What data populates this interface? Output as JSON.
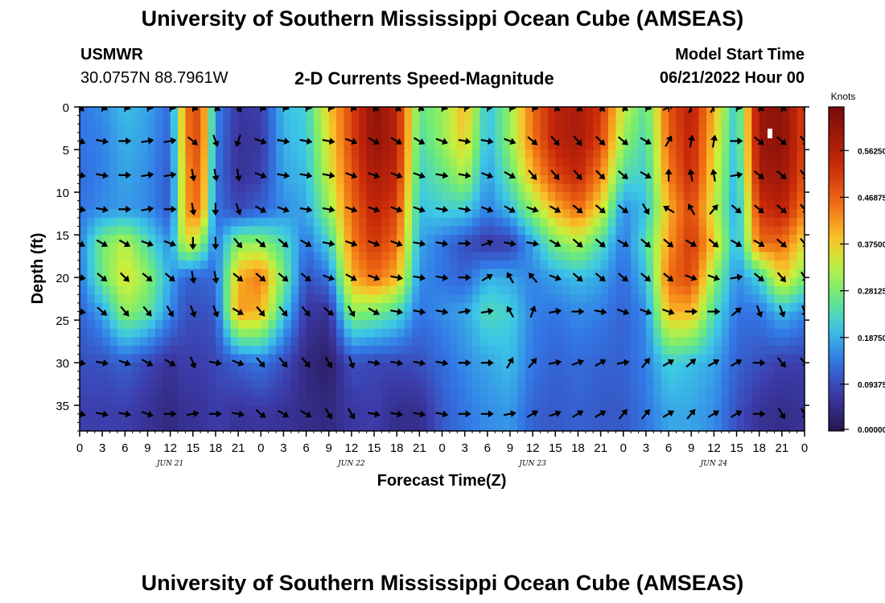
{
  "title": "University of Southern Mississippi Ocean Cube (AMSEAS)",
  "station": {
    "name": "USMWR",
    "coords": "30.0757N  88.7961W"
  },
  "model": {
    "label": "Model Start Time",
    "value": "06/21/2022 Hour 00"
  },
  "chart_data": {
    "type": "heatmap",
    "title": "2-D Currents Speed-Magnitude",
    "xlabel": "Forecast Time(Z)",
    "ylabel": "Depth (ft)",
    "x_hours": [
      0,
      96
    ],
    "y_depth_ft": [
      0,
      38
    ],
    "x_ticks": [
      "0",
      "3",
      "6",
      "9",
      "12",
      "15",
      "18",
      "21",
      "0",
      "3",
      "6",
      "9",
      "12",
      "15",
      "18",
      "21",
      "0",
      "3",
      "6",
      "9",
      "12",
      "15",
      "18",
      "21",
      "0",
      "3",
      "6",
      "9",
      "12",
      "15",
      "18",
      "21",
      "0"
    ],
    "date_labels": [
      {
        "label": "JUN 21",
        "hour": 12
      },
      {
        "label": "JUN 22",
        "hour": 36
      },
      {
        "label": "JUN 23",
        "hour": 60
      },
      {
        "label": "JUN 24",
        "hour": 84
      }
    ],
    "y_ticks": [
      "0",
      "5",
      "10",
      "15",
      "20",
      "25",
      "30",
      "35"
    ],
    "y_tick_values": [
      0,
      5,
      10,
      15,
      20,
      25,
      30,
      35
    ],
    "colorbar": {
      "unit": "Knots",
      "range": [
        0,
        0.65
      ],
      "tick_labels": [
        "0.00000",
        "0.09375",
        "0.18750",
        "0.28125",
        "0.37500",
        "0.46875",
        "0.56250"
      ],
      "tick_values": [
        0,
        0.09375,
        0.1875,
        0.28125,
        0.375,
        0.46875,
        0.5625
      ]
    },
    "speed_columns": [
      {
        "hour": 0,
        "values": [
          0.14,
          0.14,
          0.13,
          0.14,
          0.15,
          0.14,
          0.12,
          0.1,
          0.08
        ]
      },
      {
        "hour": 3,
        "values": [
          0.16,
          0.15,
          0.15,
          0.16,
          0.28,
          0.27,
          0.18,
          0.1,
          0.08
        ]
      },
      {
        "hour": 6,
        "values": [
          0.2,
          0.19,
          0.18,
          0.17,
          0.33,
          0.36,
          0.3,
          0.12,
          0.08
        ]
      },
      {
        "hour": 9,
        "values": [
          0.18,
          0.17,
          0.16,
          0.16,
          0.24,
          0.3,
          0.26,
          0.09,
          0.06
        ]
      },
      {
        "hour": 12,
        "values": [
          0.13,
          0.12,
          0.11,
          0.11,
          0.16,
          0.18,
          0.16,
          0.06,
          0.04
        ]
      },
      {
        "hour": 14,
        "values": [
          0.45,
          0.44,
          0.42,
          0.42,
          0.36,
          0.12,
          0.1,
          0.08,
          0.06
        ]
      },
      {
        "hour": 16,
        "values": [
          0.5,
          0.5,
          0.48,
          0.46,
          0.3,
          0.12,
          0.1,
          0.08,
          0.06
        ]
      },
      {
        "hour": 18,
        "values": [
          0.16,
          0.15,
          0.14,
          0.14,
          0.14,
          0.13,
          0.11,
          0.09,
          0.08
        ]
      },
      {
        "hour": 21,
        "values": [
          0.07,
          0.06,
          0.06,
          0.09,
          0.3,
          0.4,
          0.42,
          0.12,
          0.06
        ]
      },
      {
        "hour": 24,
        "values": [
          0.08,
          0.07,
          0.08,
          0.12,
          0.3,
          0.45,
          0.4,
          0.14,
          0.07
        ]
      },
      {
        "hour": 27,
        "values": [
          0.2,
          0.19,
          0.18,
          0.16,
          0.24,
          0.28,
          0.22,
          0.1,
          0.06
        ]
      },
      {
        "hour": 30,
        "values": [
          0.22,
          0.21,
          0.2,
          0.18,
          0.14,
          0.1,
          0.07,
          0.04,
          0.05
        ]
      },
      {
        "hour": 33,
        "values": [
          0.38,
          0.36,
          0.34,
          0.3,
          0.22,
          0.14,
          0.06,
          0.02,
          0.04
        ]
      },
      {
        "hour": 36,
        "values": [
          0.5,
          0.5,
          0.48,
          0.46,
          0.44,
          0.4,
          0.3,
          0.1,
          0.07
        ]
      },
      {
        "hour": 39,
        "values": [
          0.62,
          0.61,
          0.58,
          0.55,
          0.52,
          0.46,
          0.28,
          0.09,
          0.08
        ]
      },
      {
        "hour": 42,
        "values": [
          0.55,
          0.56,
          0.54,
          0.5,
          0.46,
          0.4,
          0.24,
          0.09,
          0.05
        ]
      },
      {
        "hour": 45,
        "values": [
          0.26,
          0.24,
          0.22,
          0.2,
          0.18,
          0.16,
          0.14,
          0.1,
          0.05
        ]
      },
      {
        "hour": 48,
        "values": [
          0.3,
          0.3,
          0.26,
          0.22,
          0.14,
          0.14,
          0.16,
          0.13,
          0.11
        ]
      },
      {
        "hour": 51,
        "values": [
          0.4,
          0.38,
          0.32,
          0.22,
          0.1,
          0.12,
          0.18,
          0.16,
          0.14
        ]
      },
      {
        "hour": 54,
        "values": [
          0.2,
          0.19,
          0.17,
          0.15,
          0.07,
          0.19,
          0.24,
          0.18,
          0.16
        ]
      },
      {
        "hour": 57,
        "values": [
          0.3,
          0.3,
          0.26,
          0.2,
          0.08,
          0.18,
          0.22,
          0.2,
          0.17
        ]
      },
      {
        "hour": 60,
        "values": [
          0.46,
          0.45,
          0.4,
          0.3,
          0.18,
          0.15,
          0.15,
          0.14,
          0.12
        ]
      },
      {
        "hour": 63,
        "values": [
          0.55,
          0.55,
          0.5,
          0.4,
          0.28,
          0.18,
          0.14,
          0.12,
          0.11
        ]
      },
      {
        "hour": 66,
        "values": [
          0.58,
          0.58,
          0.54,
          0.46,
          0.32,
          0.2,
          0.16,
          0.13,
          0.12
        ]
      },
      {
        "hour": 69,
        "values": [
          0.52,
          0.5,
          0.44,
          0.36,
          0.24,
          0.18,
          0.15,
          0.12,
          0.11
        ]
      },
      {
        "hour": 72,
        "values": [
          0.34,
          0.3,
          0.24,
          0.16,
          0.14,
          0.13,
          0.12,
          0.12,
          0.11
        ]
      },
      {
        "hour": 75,
        "values": [
          0.25,
          0.23,
          0.22,
          0.2,
          0.24,
          0.2,
          0.16,
          0.15,
          0.14
        ]
      },
      {
        "hour": 78,
        "values": [
          0.48,
          0.47,
          0.44,
          0.4,
          0.42,
          0.46,
          0.4,
          0.22,
          0.18
        ]
      },
      {
        "hour": 81,
        "values": [
          0.56,
          0.55,
          0.54,
          0.5,
          0.52,
          0.5,
          0.4,
          0.2,
          0.18
        ]
      },
      {
        "hour": 84,
        "values": [
          0.4,
          0.38,
          0.36,
          0.34,
          0.38,
          0.3,
          0.24,
          0.18,
          0.16
        ]
      },
      {
        "hour": 87,
        "values": [
          0.2,
          0.19,
          0.18,
          0.17,
          0.18,
          0.16,
          0.14,
          0.12,
          0.1
        ]
      },
      {
        "hour": 90,
        "values": [
          0.6,
          0.6,
          0.58,
          0.52,
          0.46,
          0.22,
          0.14,
          0.1,
          0.06
        ]
      },
      {
        "hour": 93,
        "values": [
          0.62,
          0.62,
          0.6,
          0.56,
          0.46,
          0.38,
          0.2,
          0.08,
          0.05
        ]
      },
      {
        "hour": 96,
        "values": [
          0.5,
          0.5,
          0.48,
          0.44,
          0.36,
          0.28,
          0.16,
          0.08,
          0.06
        ]
      }
    ],
    "speed_depths_ft": [
      0,
      4,
      8,
      12,
      16,
      20,
      24,
      30,
      36
    ],
    "vector_directions_deg": [
      [
        135,
        110,
        100,
        100,
        120,
        100,
        100,
        100,
        100
      ],
      [
        120,
        100,
        100,
        100,
        120,
        130,
        130,
        100,
        100
      ],
      [
        110,
        90,
        90,
        90,
        120,
        135,
        140,
        110,
        100
      ],
      [
        100,
        80,
        80,
        80,
        110,
        130,
        140,
        120,
        110
      ],
      [
        100,
        80,
        80,
        90,
        110,
        130,
        150,
        120,
        90
      ],
      [
        120,
        130,
        170,
        170,
        180,
        170,
        160,
        160,
        80
      ],
      [
        130,
        160,
        170,
        180,
        180,
        170,
        160,
        100,
        90
      ],
      [
        150,
        200,
        170,
        160,
        140,
        130,
        120,
        110,
        100
      ],
      [
        120,
        110,
        110,
        120,
        130,
        130,
        140,
        140,
        130
      ],
      [
        110,
        100,
        100,
        110,
        130,
        130,
        140,
        140,
        120
      ],
      [
        100,
        100,
        100,
        100,
        120,
        130,
        140,
        140,
        120
      ],
      [
        100,
        100,
        100,
        100,
        100,
        110,
        130,
        150,
        150
      ],
      [
        120,
        110,
        110,
        110,
        110,
        120,
        150,
        160,
        150
      ],
      [
        130,
        120,
        110,
        110,
        110,
        110,
        120,
        100,
        100
      ],
      [
        135,
        120,
        110,
        110,
        110,
        100,
        100,
        100,
        100
      ],
      [
        130,
        120,
        110,
        110,
        100,
        100,
        100,
        100,
        100
      ],
      [
        110,
        110,
        100,
        100,
        100,
        100,
        100,
        100,
        100
      ],
      [
        90,
        100,
        100,
        100,
        90,
        90,
        80,
        90,
        90
      ],
      [
        90,
        100,
        110,
        110,
        70,
        60,
        80,
        90,
        90
      ],
      [
        100,
        110,
        120,
        120,
        100,
        330,
        330,
        30,
        80
      ],
      [
        110,
        130,
        140,
        110,
        100,
        320,
        20,
        40,
        60
      ],
      [
        130,
        140,
        140,
        120,
        120,
        110,
        80,
        80,
        70
      ],
      [
        135,
        140,
        140,
        130,
        130,
        130,
        90,
        70,
        60
      ],
      [
        135,
        135,
        135,
        130,
        130,
        130,
        100,
        60,
        60
      ],
      [
        130,
        130,
        130,
        130,
        120,
        130,
        110,
        80,
        40
      ],
      [
        110,
        120,
        120,
        150,
        130,
        130,
        110,
        40,
        40
      ],
      [
        60,
        30,
        360,
        300,
        130,
        130,
        110,
        60,
        60
      ],
      [
        20,
        10,
        350,
        330,
        120,
        110,
        90,
        50,
        40
      ],
      [
        30,
        10,
        350,
        40,
        130,
        110,
        90,
        60,
        60
      ],
      [
        100,
        90,
        80,
        130,
        120,
        80,
        50,
        60,
        60
      ],
      [
        130,
        130,
        130,
        130,
        120,
        130,
        160,
        90,
        90
      ],
      [
        130,
        130,
        130,
        130,
        130,
        140,
        160,
        140,
        150
      ],
      [
        140,
        140,
        140,
        140,
        140,
        150,
        160,
        140,
        150
      ]
    ]
  }
}
